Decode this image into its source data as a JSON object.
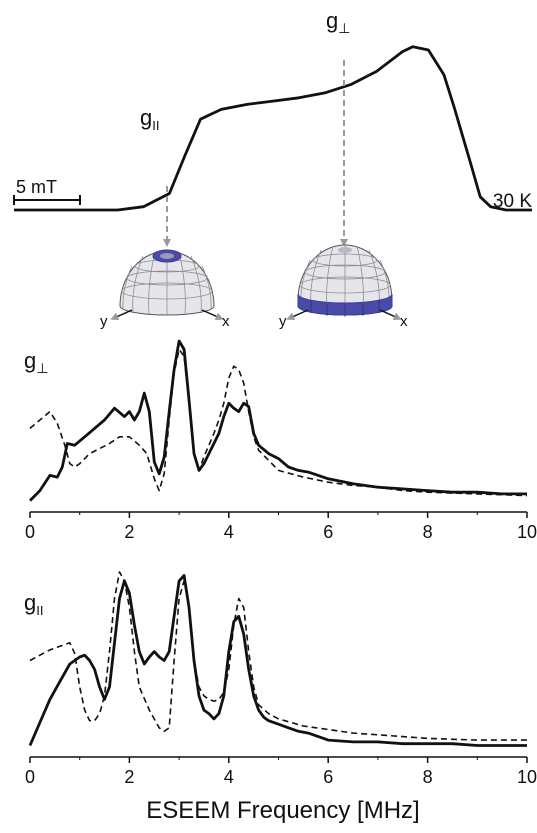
{
  "figure": {
    "line_color": "#111111",
    "arrow_color": "#9a9a9a",
    "band_color": "#3a3a9a",
    "band_fill": "#4a4aa8",
    "dome_fill": "#e6e6ea",
    "dome_grid": "#8c8c96"
  },
  "chart_data": [
    {
      "type": "line",
      "panel": "epr-absorption",
      "temperature_label": "30 K",
      "scalebar_label": "5 mT",
      "annotations": [
        {
          "label": "g",
          "subscript": "II"
        },
        {
          "label": "g",
          "subscript": "⊥"
        }
      ],
      "grid": false,
      "series": [
        {
          "style": "solid",
          "x": [
            0,
            5,
            10,
            15,
            20,
            25,
            30,
            33,
            36,
            40,
            45,
            50,
            55,
            60,
            65,
            70,
            75,
            77,
            80,
            83,
            85,
            88,
            90,
            92,
            95,
            100
          ],
          "y": [
            0,
            0,
            0,
            0,
            0,
            0.02,
            0.1,
            0.33,
            0.55,
            0.61,
            0.64,
            0.66,
            0.68,
            0.71,
            0.76,
            0.84,
            0.96,
            0.99,
            0.97,
            0.82,
            0.62,
            0.3,
            0.08,
            0.02,
            0,
            0
          ]
        }
      ]
    },
    {
      "type": "illustration",
      "panel": "orientation-spheres",
      "spheres": [
        {
          "axis_labels": [
            "y",
            "x"
          ],
          "selected_region": "pole"
        },
        {
          "axis_labels": [
            "y",
            "x"
          ],
          "selected_region": "equator"
        }
      ]
    },
    {
      "type": "line",
      "panel": "eseem-g-perp",
      "panel_label": {
        "label": "g",
        "subscript": "⊥"
      },
      "xlim": [
        0,
        10
      ],
      "xticks": [
        "0",
        "2",
        "4",
        "6",
        "8",
        "10"
      ],
      "grid": false,
      "series": [
        {
          "style": "solid",
          "x": [
            0,
            0.2,
            0.4,
            0.55,
            0.65,
            0.75,
            0.9,
            1.1,
            1.3,
            1.5,
            1.7,
            1.9,
            2.0,
            2.1,
            2.2,
            2.3,
            2.4,
            2.5,
            2.6,
            2.7,
            2.8,
            2.9,
            3.0,
            3.1,
            3.2,
            3.3,
            3.4,
            3.5,
            3.6,
            3.7,
            3.8,
            3.9,
            4.0,
            4.1,
            4.2,
            4.3,
            4.4,
            4.5,
            4.6,
            4.8,
            5.0,
            5.2,
            5.4,
            5.6,
            5.8,
            6.0,
            6.5,
            7.0,
            7.5,
            8.0,
            8.5,
            9.0,
            9.5,
            10.0
          ],
          "y": [
            0.02,
            0.08,
            0.17,
            0.16,
            0.22,
            0.36,
            0.35,
            0.4,
            0.45,
            0.5,
            0.57,
            0.52,
            0.55,
            0.5,
            0.55,
            0.66,
            0.55,
            0.25,
            0.18,
            0.28,
            0.55,
            0.8,
            0.97,
            0.92,
            0.62,
            0.3,
            0.2,
            0.24,
            0.3,
            0.36,
            0.42,
            0.52,
            0.6,
            0.57,
            0.55,
            0.6,
            0.58,
            0.42,
            0.35,
            0.3,
            0.27,
            0.22,
            0.2,
            0.19,
            0.17,
            0.15,
            0.12,
            0.1,
            0.09,
            0.08,
            0.07,
            0.07,
            0.06,
            0.06
          ]
        },
        {
          "style": "dashed",
          "x": [
            0,
            0.2,
            0.4,
            0.55,
            0.7,
            0.8,
            0.9,
            1.0,
            1.2,
            1.4,
            1.6,
            1.8,
            2.0,
            2.2,
            2.35,
            2.5,
            2.6,
            2.7,
            2.8,
            2.9,
            3.0,
            3.1,
            3.2,
            3.3,
            3.4,
            3.5,
            3.6,
            3.7,
            3.8,
            3.9,
            4.0,
            4.1,
            4.2,
            4.3,
            4.4,
            4.5,
            4.6,
            4.8,
            5.0,
            5.5,
            6.0,
            6.5,
            7.0,
            7.5,
            8.0,
            9.0,
            10.0
          ],
          "y": [
            0.45,
            0.5,
            0.55,
            0.48,
            0.35,
            0.24,
            0.22,
            0.24,
            0.3,
            0.33,
            0.36,
            0.4,
            0.4,
            0.35,
            0.3,
            0.15,
            0.08,
            0.18,
            0.5,
            0.78,
            0.92,
            0.88,
            0.6,
            0.3,
            0.2,
            0.28,
            0.35,
            0.42,
            0.5,
            0.6,
            0.75,
            0.82,
            0.8,
            0.72,
            0.55,
            0.4,
            0.32,
            0.26,
            0.2,
            0.16,
            0.13,
            0.11,
            0.1,
            0.08,
            0.07,
            0.06,
            0.05
          ]
        }
      ]
    },
    {
      "type": "line",
      "panel": "eseem-g-par",
      "panel_label": {
        "label": "g",
        "subscript": "II"
      },
      "xlim": [
        0,
        10
      ],
      "xticks": [
        "0",
        "2",
        "4",
        "6",
        "8",
        "10"
      ],
      "xlabel": "ESEEM Frequency [MHz]",
      "grid": false,
      "series": [
        {
          "style": "solid",
          "x": [
            0,
            0.2,
            0.4,
            0.6,
            0.8,
            1.0,
            1.1,
            1.2,
            1.3,
            1.4,
            1.5,
            1.6,
            1.7,
            1.8,
            1.9,
            2.0,
            2.1,
            2.2,
            2.3,
            2.4,
            2.5,
            2.6,
            2.7,
            2.8,
            2.9,
            3.0,
            3.1,
            3.2,
            3.3,
            3.4,
            3.5,
            3.6,
            3.7,
            3.8,
            3.9,
            4.0,
            4.1,
            4.2,
            4.3,
            4.4,
            4.5,
            4.6,
            4.7,
            4.8,
            5.0,
            5.2,
            5.4,
            5.6,
            5.8,
            6.0,
            6.5,
            7.0,
            7.5,
            8.0,
            8.5,
            9.0,
            9.5,
            10.0
          ],
          "y": [
            0.02,
            0.15,
            0.28,
            0.38,
            0.48,
            0.52,
            0.53,
            0.5,
            0.45,
            0.35,
            0.28,
            0.35,
            0.6,
            0.85,
            0.95,
            0.88,
            0.7,
            0.55,
            0.48,
            0.52,
            0.55,
            0.52,
            0.5,
            0.55,
            0.75,
            0.95,
            0.98,
            0.8,
            0.5,
            0.3,
            0.22,
            0.2,
            0.17,
            0.2,
            0.3,
            0.55,
            0.72,
            0.75,
            0.65,
            0.45,
            0.3,
            0.22,
            0.18,
            0.16,
            0.14,
            0.12,
            0.1,
            0.09,
            0.07,
            0.05,
            0.04,
            0.04,
            0.03,
            0.03,
            0.03,
            0.02,
            0.02,
            0.02
          ]
        },
        {
          "style": "dashed",
          "x": [
            0,
            0.2,
            0.4,
            0.6,
            0.8,
            0.9,
            1.0,
            1.1,
            1.2,
            1.3,
            1.4,
            1.5,
            1.6,
            1.7,
            1.8,
            1.9,
            2.0,
            2.1,
            2.2,
            2.4,
            2.6,
            2.7,
            2.8,
            2.9,
            3.0,
            3.1,
            3.2,
            3.3,
            3.4,
            3.5,
            3.6,
            3.7,
            3.8,
            3.9,
            4.0,
            4.1,
            4.2,
            4.3,
            4.4,
            4.5,
            4.6,
            4.8,
            5.0,
            5.5,
            6.0,
            6.5,
            7.0,
            7.5,
            8.0,
            9.0,
            10.0
          ],
          "y": [
            0.5,
            0.53,
            0.56,
            0.58,
            0.6,
            0.54,
            0.35,
            0.22,
            0.16,
            0.16,
            0.2,
            0.3,
            0.55,
            0.85,
            1.0,
            0.95,
            0.8,
            0.55,
            0.35,
            0.22,
            0.12,
            0.1,
            0.12,
            0.5,
            0.85,
            0.95,
            0.8,
            0.5,
            0.35,
            0.3,
            0.28,
            0.27,
            0.28,
            0.32,
            0.45,
            0.7,
            0.85,
            0.8,
            0.55,
            0.35,
            0.25,
            0.2,
            0.17,
            0.13,
            0.11,
            0.09,
            0.08,
            0.07,
            0.06,
            0.05,
            0.05
          ]
        }
      ]
    }
  ]
}
